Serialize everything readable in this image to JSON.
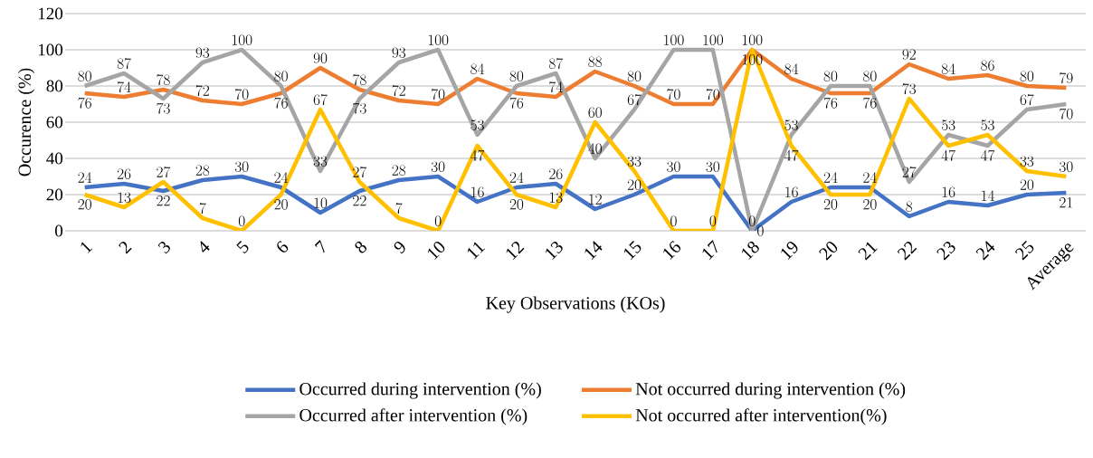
{
  "chart_data": {
    "type": "line",
    "xlabel": "Key Observations (KOs)",
    "ylabel": "Occurence (%)",
    "categories": [
      "1",
      "2",
      "3",
      "4",
      "5",
      "6",
      "7",
      "8",
      "9",
      "10",
      "11",
      "12",
      "13",
      "14",
      "15",
      "16",
      "17",
      "18",
      "19",
      "20",
      "21",
      "22",
      "23",
      "24",
      "25",
      "Average"
    ],
    "series": [
      {
        "name": "Occurred during intervention (%)",
        "color": "#4472c4",
        "values": [
          24,
          26,
          22,
          28,
          30,
          24,
          10,
          22,
          28,
          30,
          16,
          24,
          26,
          12,
          20,
          30,
          30,
          0,
          16,
          24,
          24,
          8,
          16,
          14,
          20,
          21
        ]
      },
      {
        "name": "Not occurred during intervention (%)",
        "color": "#ed7d31",
        "values": [
          76,
          74,
          78,
          72,
          70,
          76,
          90,
          78,
          72,
          70,
          84,
          76,
          74,
          88,
          80,
          70,
          70,
          100,
          84,
          76,
          76,
          92,
          84,
          86,
          80,
          79
        ]
      },
      {
        "name": "Occurred after intervention (%)",
        "color": "#a5a5a5",
        "values": [
          80,
          87,
          73,
          93,
          100,
          80,
          33,
          73,
          93,
          100,
          53,
          80,
          87,
          40,
          67,
          100,
          100,
          0,
          53,
          80,
          80,
          27,
          53,
          47,
          67,
          70
        ]
      },
      {
        "name": "Not occurred after intervention(%)",
        "color": "#ffc000",
        "values": [
          20,
          13,
          27,
          7,
          0,
          20,
          67,
          27,
          7,
          0,
          47,
          20,
          13,
          60,
          33,
          0,
          0,
          100,
          47,
          20,
          20,
          73,
          47,
          53,
          33,
          30
        ]
      }
    ],
    "ylim": [
      0,
      120
    ],
    "yticks": [
      0,
      20,
      40,
      60,
      80,
      100,
      120
    ],
    "grid": "y",
    "legend": "bottom",
    "data_labels": true,
    "marker": "none",
    "line_style": "solid"
  }
}
